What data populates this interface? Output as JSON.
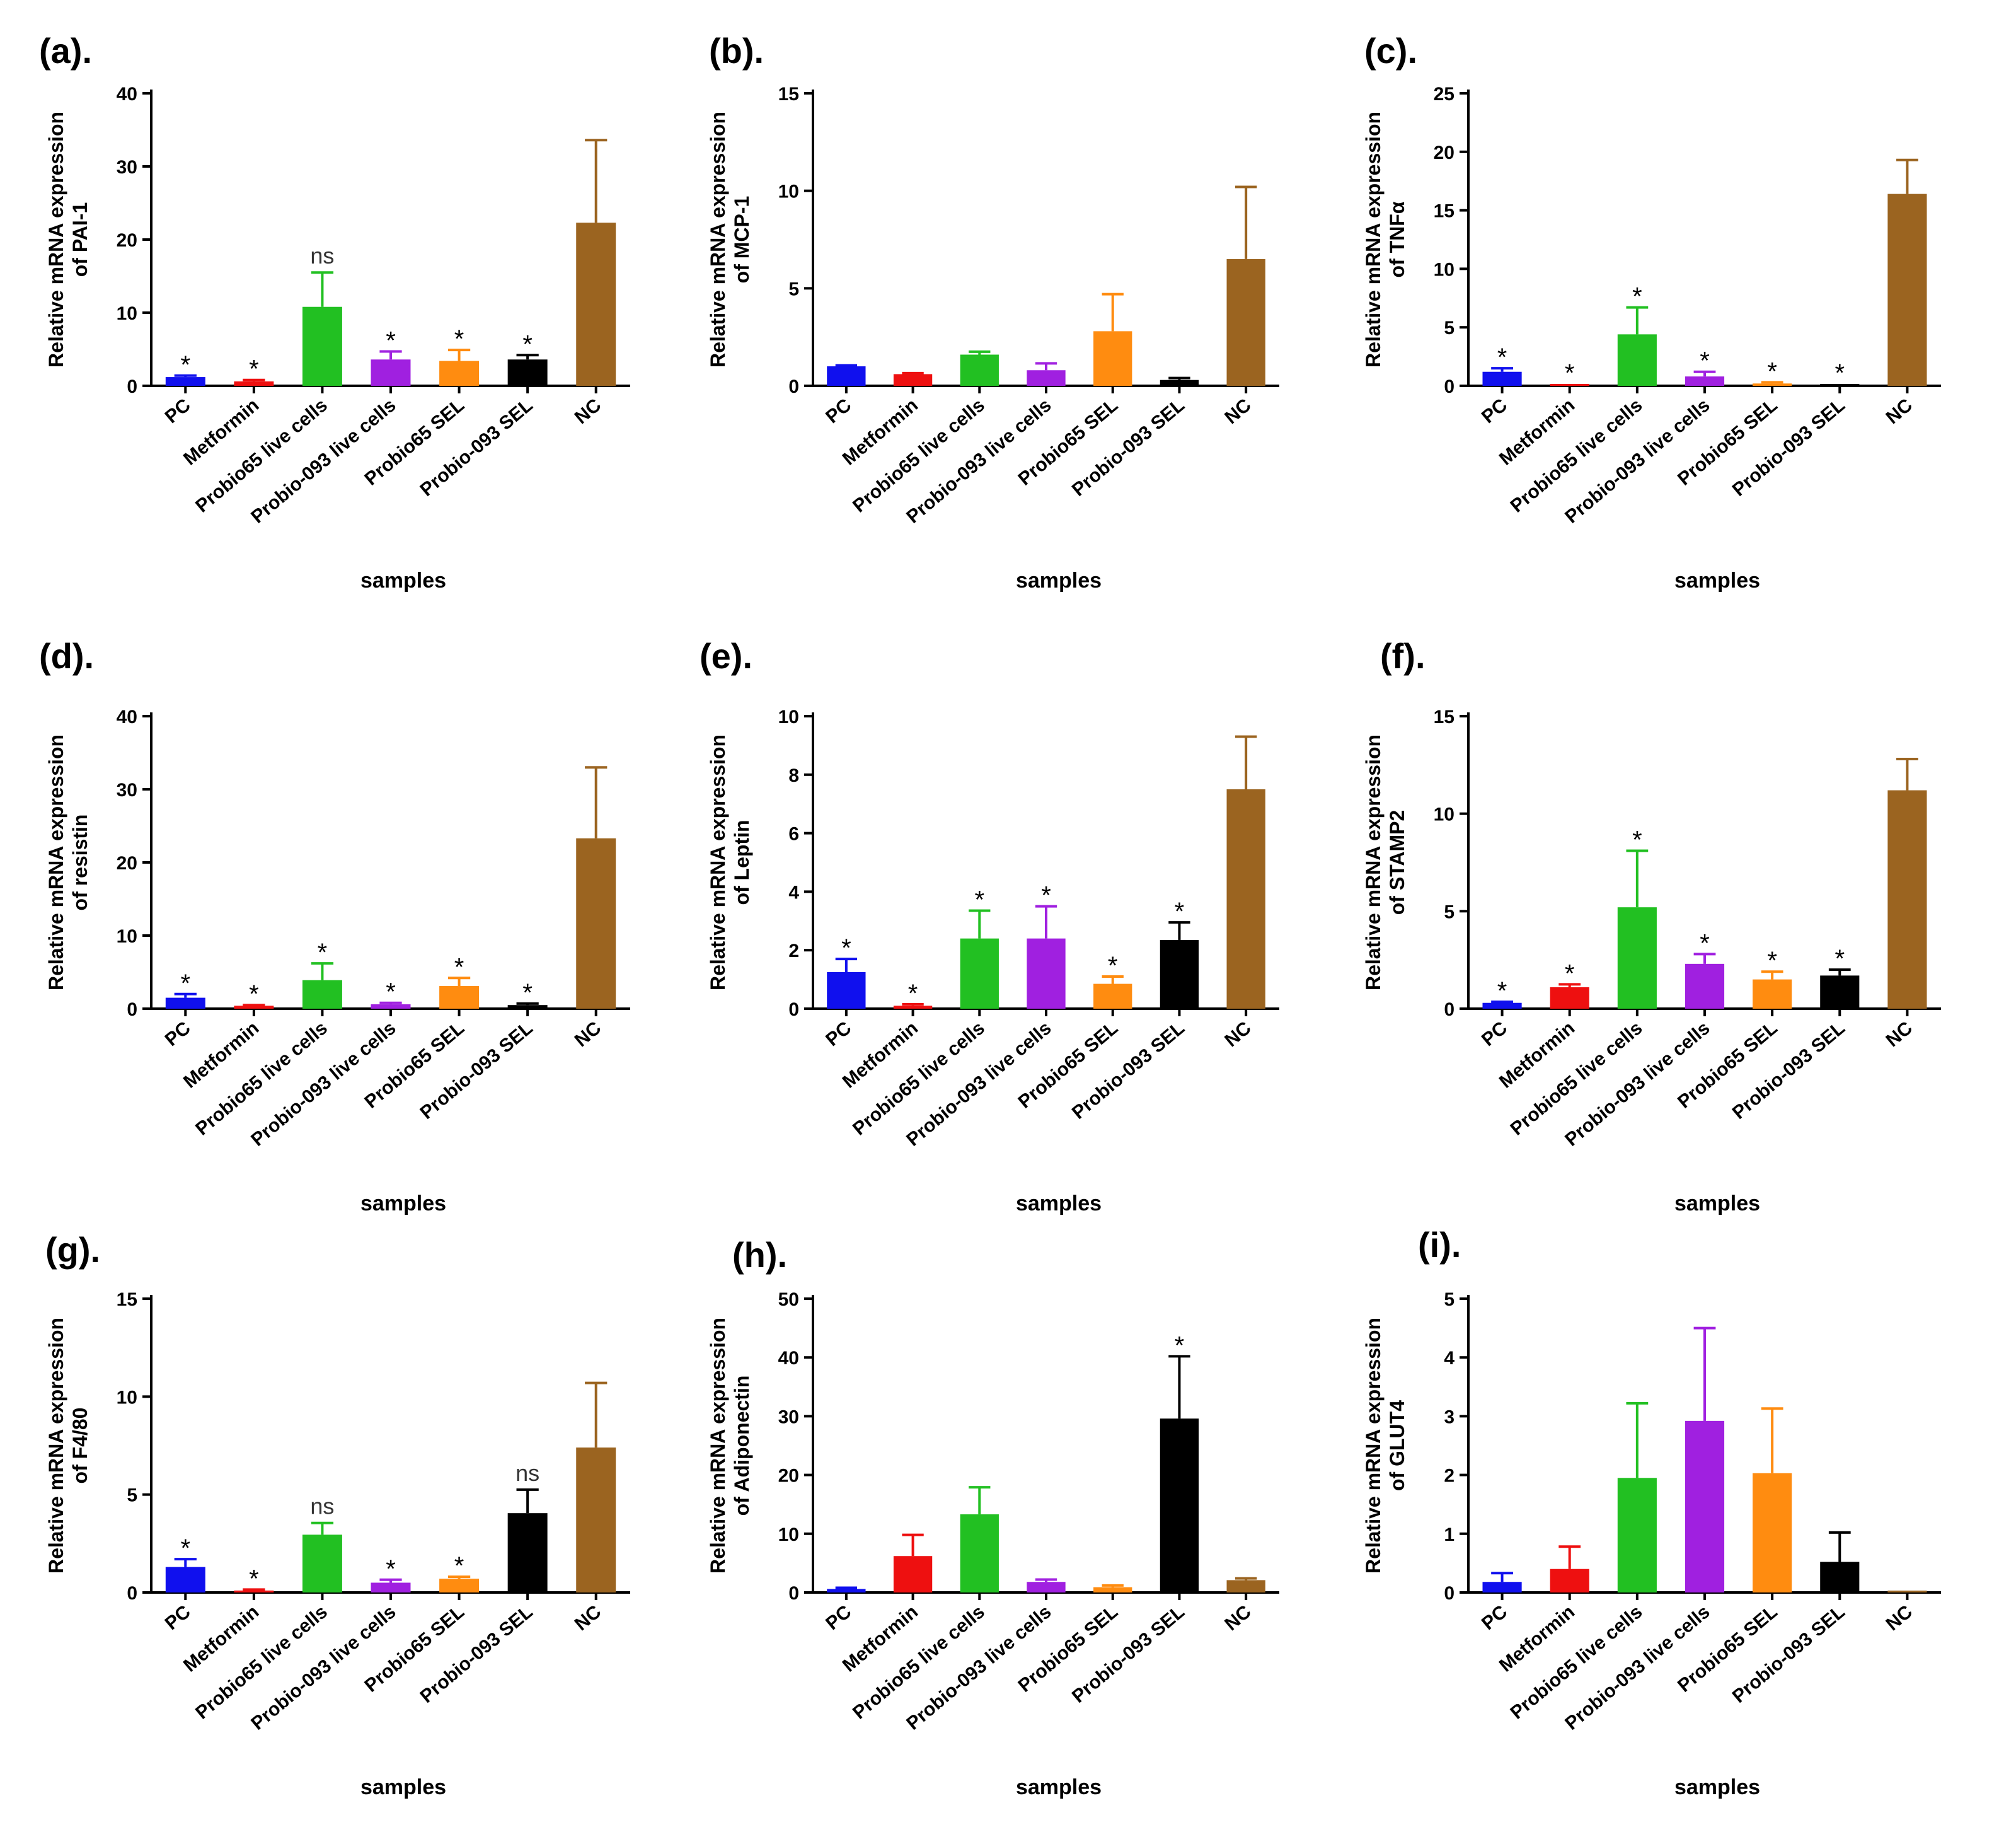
{
  "figure": {
    "x_title": "samples",
    "y_title_line1": "Relative mRNA expression",
    "categories": [
      "PC",
      "Metformin",
      "Probio65 live cells",
      "Probio-093 live cells",
      "Probio65 SEL",
      "Probio-093 SEL",
      "NC"
    ],
    "colors": [
      "#1010ee",
      "#ee1010",
      "#22c022",
      "#a020e0",
      "#ff8c10",
      "#000000",
      "#9b6420"
    ]
  },
  "chart_data": [
    {
      "type": "bar",
      "panel": "(a).",
      "gene": "of PAI-1",
      "ylim": [
        0,
        40
      ],
      "yticks": [
        0,
        10,
        20,
        30,
        40
      ],
      "categories": [
        "PC",
        "Metformin",
        "Probio65 live cells",
        "Probio-093 live cells",
        "Probio65 SEL",
        "Probio-093 SEL",
        "NC"
      ],
      "values": [
        1.2,
        0.6,
        10.8,
        3.6,
        3.4,
        3.6,
        22.3
      ],
      "errors": [
        0.2,
        0.2,
        4.7,
        1.1,
        1.5,
        0.6,
        11.3
      ],
      "annotations": [
        "*",
        "*",
        "ns",
        "*",
        "*",
        "*",
        ""
      ]
    },
    {
      "type": "bar",
      "panel": "(b).",
      "gene": "of MCP-1",
      "ylim": [
        0,
        15
      ],
      "yticks": [
        0,
        5,
        10,
        15
      ],
      "categories": [
        "PC",
        "Metformin",
        "Probio65 live cells",
        "Probio-093 live cells",
        "Probio65 SEL",
        "Probio-093 SEL",
        "NC"
      ],
      "values": [
        1.0,
        0.6,
        1.6,
        0.8,
        2.8,
        0.3,
        6.5
      ],
      "errors": [
        0.05,
        0.05,
        0.15,
        0.35,
        1.9,
        0.1,
        3.7
      ],
      "annotations": [
        "",
        "",
        "",
        "",
        "",
        "",
        ""
      ]
    },
    {
      "type": "bar",
      "panel": "(c).",
      "gene": "of TNFα",
      "ylim": [
        0,
        25
      ],
      "yticks": [
        0,
        5,
        10,
        15,
        20,
        25
      ],
      "categories": [
        "PC",
        "Metformin",
        "Probio65 live cells",
        "Probio-093 live cells",
        "Probio65 SEL",
        "Probio-093 SEL",
        "NC"
      ],
      "values": [
        1.2,
        0.1,
        4.4,
        0.8,
        0.2,
        0.1,
        16.4
      ],
      "errors": [
        0.3,
        0.05,
        2.3,
        0.4,
        0.1,
        0.05,
        2.9
      ],
      "annotations": [
        "*",
        "*",
        "*",
        "*",
        "*",
        "*",
        ""
      ]
    },
    {
      "type": "bar",
      "panel": "(d).",
      "gene": "of resistin",
      "ylim": [
        0,
        40
      ],
      "yticks": [
        0,
        10,
        20,
        30,
        40
      ],
      "categories": [
        "PC",
        "Metformin",
        "Probio65 live cells",
        "Probio-093 live cells",
        "Probio65 SEL",
        "Probio-093 SEL",
        "NC"
      ],
      "values": [
        1.5,
        0.4,
        3.9,
        0.6,
        3.1,
        0.5,
        23.3
      ],
      "errors": [
        0.5,
        0.1,
        2.3,
        0.2,
        1.1,
        0.2,
        9.7
      ],
      "annotations": [
        "*",
        "*",
        "*",
        "*",
        "*",
        "*",
        ""
      ]
    },
    {
      "type": "bar",
      "panel": "(e).",
      "gene": "of Leptin",
      "ylim": [
        0,
        10
      ],
      "yticks": [
        0,
        2,
        4,
        6,
        8,
        10
      ],
      "categories": [
        "PC",
        "Metformin",
        "Probio65 live cells",
        "Probio-093 live cells",
        "Probio65 SEL",
        "Probio-093 SEL",
        "NC"
      ],
      "values": [
        1.25,
        0.1,
        2.4,
        2.4,
        0.85,
        2.35,
        7.5
      ],
      "errors": [
        0.45,
        0.05,
        0.95,
        1.1,
        0.25,
        0.6,
        1.8
      ],
      "annotations": [
        "*",
        "*",
        "*",
        "*",
        "*",
        "*",
        ""
      ]
    },
    {
      "type": "bar",
      "panel": "(f).",
      "gene": "of STAMP2",
      "ylim": [
        0,
        15
      ],
      "yticks": [
        0,
        5,
        10,
        15
      ],
      "categories": [
        "PC",
        "Metformin",
        "Probio65 live cells",
        "Probio-093 live cells",
        "Probio65 SEL",
        "Probio-093 SEL",
        "NC"
      ],
      "values": [
        0.3,
        1.1,
        5.2,
        2.3,
        1.5,
        1.7,
        11.2
      ],
      "errors": [
        0.05,
        0.15,
        2.9,
        0.5,
        0.4,
        0.3,
        1.6
      ],
      "annotations": [
        "*",
        "*",
        "*",
        "*",
        "*",
        "*",
        ""
      ]
    },
    {
      "type": "bar",
      "panel": "(g).",
      "gene": "of F4/80",
      "ylim": [
        0,
        15
      ],
      "yticks": [
        0,
        5,
        10,
        15
      ],
      "categories": [
        "PC",
        "Metformin",
        "Probio65 live cells",
        "Probio-093 live cells",
        "Probio65 SEL",
        "Probio-093 SEL",
        "NC"
      ],
      "values": [
        1.3,
        0.1,
        2.95,
        0.5,
        0.7,
        4.05,
        7.4
      ],
      "errors": [
        0.4,
        0.05,
        0.6,
        0.15,
        0.1,
        1.2,
        3.3
      ],
      "annotations": [
        "*",
        "*",
        "ns",
        "*",
        "*",
        "ns",
        ""
      ]
    },
    {
      "type": "bar",
      "panel": "(h).",
      "gene": "of Adiponectin",
      "ylim": [
        0,
        50
      ],
      "yticks": [
        0,
        10,
        20,
        30,
        40,
        50
      ],
      "categories": [
        "PC",
        "Metformin",
        "Probio65 live cells",
        "Probio-093 live cells",
        "Probio65 SEL",
        "Probio-093 SEL",
        "NC"
      ],
      "values": [
        0.6,
        6.2,
        13.3,
        1.8,
        0.9,
        29.6,
        2.1
      ],
      "errors": [
        0.2,
        3.6,
        4.6,
        0.4,
        0.3,
        10.6,
        0.3
      ],
      "annotations": [
        "",
        "",
        "",
        "",
        "",
        "*",
        ""
      ]
    },
    {
      "type": "bar",
      "panel": "(i).",
      "gene": "of GLUT4",
      "ylim": [
        0,
        5
      ],
      "yticks": [
        0,
        1,
        2,
        3,
        4,
        5
      ],
      "categories": [
        "PC",
        "Metformin",
        "Probio65 live cells",
        "Probio-093 live cells",
        "Probio65 SEL",
        "Probio-093 SEL",
        "NC"
      ],
      "values": [
        0.18,
        0.4,
        1.95,
        2.92,
        2.03,
        0.52,
        0.02
      ],
      "errors": [
        0.15,
        0.38,
        1.27,
        1.58,
        1.1,
        0.5,
        0.01
      ],
      "annotations": [
        "",
        "",
        "",
        "",
        "",
        "",
        ""
      ]
    }
  ]
}
